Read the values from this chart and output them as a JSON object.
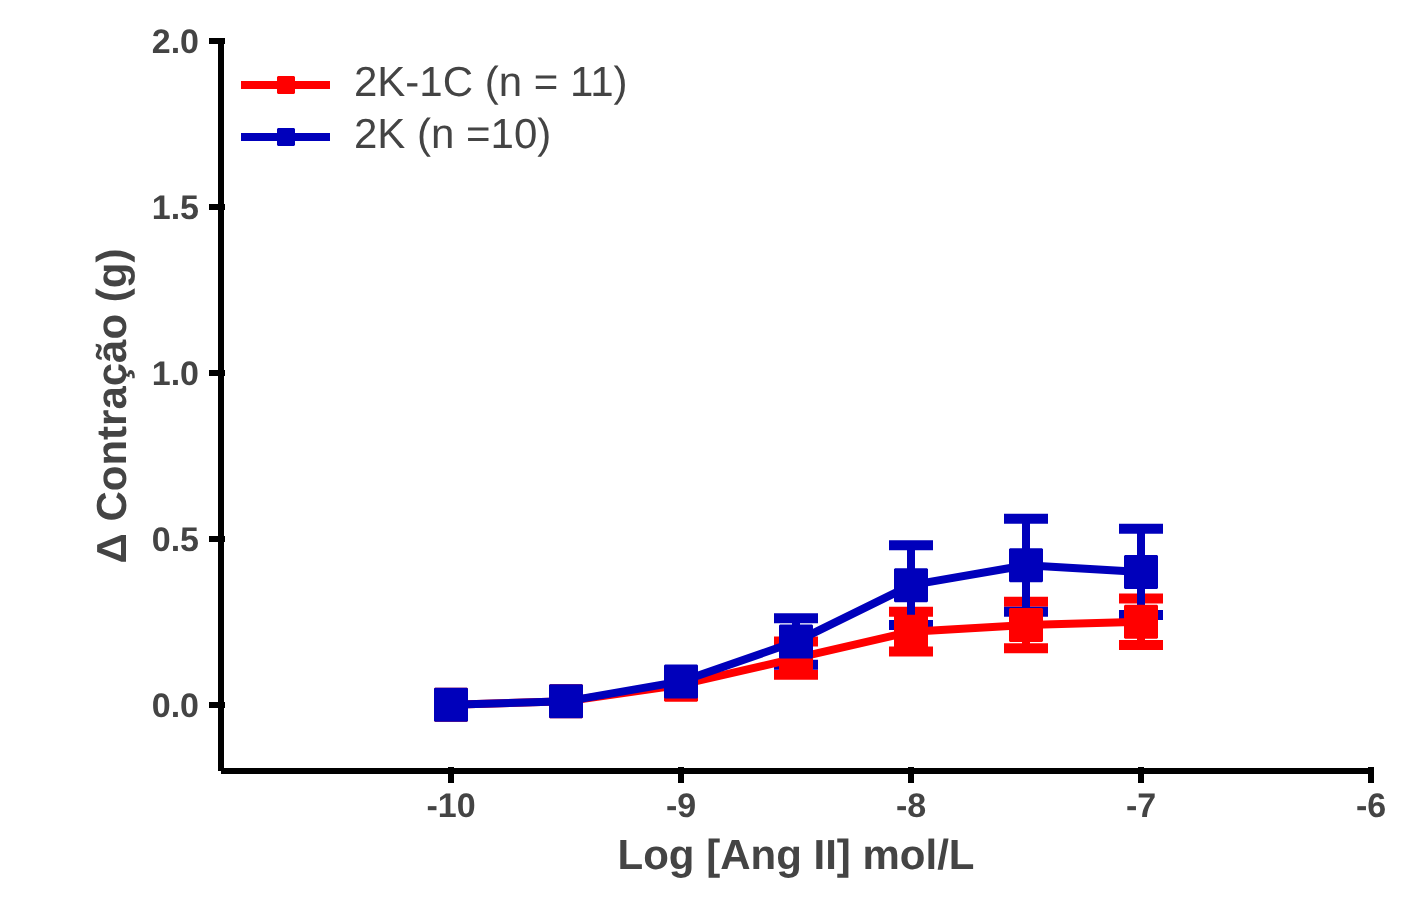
{
  "chart_data": {
    "type": "line",
    "xlabel": "Log [Ang II] mol/L",
    "ylabel": "Δ Contração (g)",
    "xlim": [
      -11,
      -6
    ],
    "xticks": [
      -10,
      -9,
      -8,
      -7,
      -6
    ],
    "ylim": [
      -0.2,
      2.0
    ],
    "yticks": [
      {
        "value": 0,
        "label": "0.0"
      },
      {
        "value": 0.5,
        "label": "0.5"
      },
      {
        "value": 1,
        "label": "1.0"
      },
      {
        "value": 1.5,
        "label": "1.5"
      },
      {
        "value": 2,
        "label": "2.0"
      }
    ],
    "x": [
      -10,
      -9.5,
      -9,
      -8.5,
      -8,
      -7.5,
      -7
    ],
    "marker": "square",
    "legend": "top left",
    "grid": false,
    "series": [
      {
        "name": "2K-1C (n = 11)",
        "color": "#ff0000",
        "values": [
          0.0,
          0.01,
          0.06,
          0.14,
          0.22,
          0.24,
          0.25
        ],
        "errors": [
          null,
          null,
          null,
          0.05,
          0.06,
          0.07,
          0.07
        ]
      },
      {
        "name": "2K (n =10)",
        "color": "#0000bb",
        "values": [
          0.0,
          0.01,
          0.07,
          0.19,
          0.36,
          0.42,
          0.4
        ],
        "errors": [
          null,
          null,
          null,
          0.07,
          0.12,
          0.14,
          0.13
        ]
      }
    ]
  }
}
